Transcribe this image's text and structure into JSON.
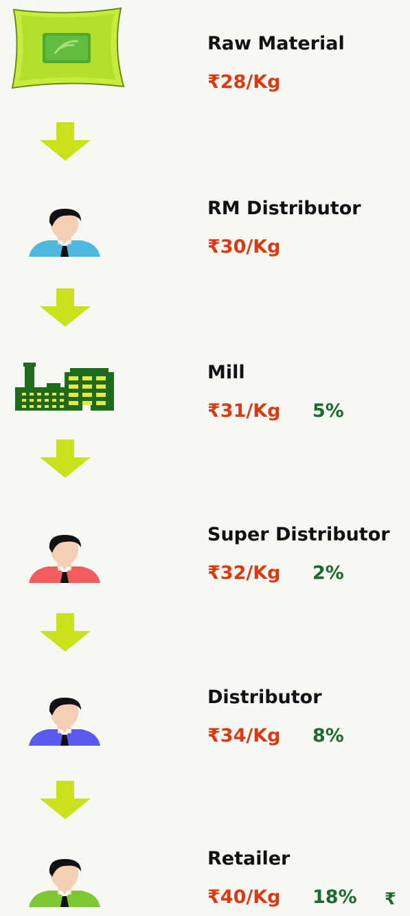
{
  "stages": [
    {
      "label": "Raw Material",
      "price": "₹28/Kg"
    },
    {
      "label": "RM Distributor",
      "price": "₹30/Kg"
    },
    {
      "label": "Mill",
      "price": "₹31/Kg",
      "margin": "5%"
    },
    {
      "label": "Super Distributor",
      "price": "₹32/Kg",
      "margin": "2%"
    },
    {
      "label": "Distributor",
      "price": "₹34/Kg",
      "margin": "8%"
    },
    {
      "label": "Retailer",
      "price": "₹40/Kg",
      "margin": "18%",
      "extra": "₹"
    }
  ]
}
